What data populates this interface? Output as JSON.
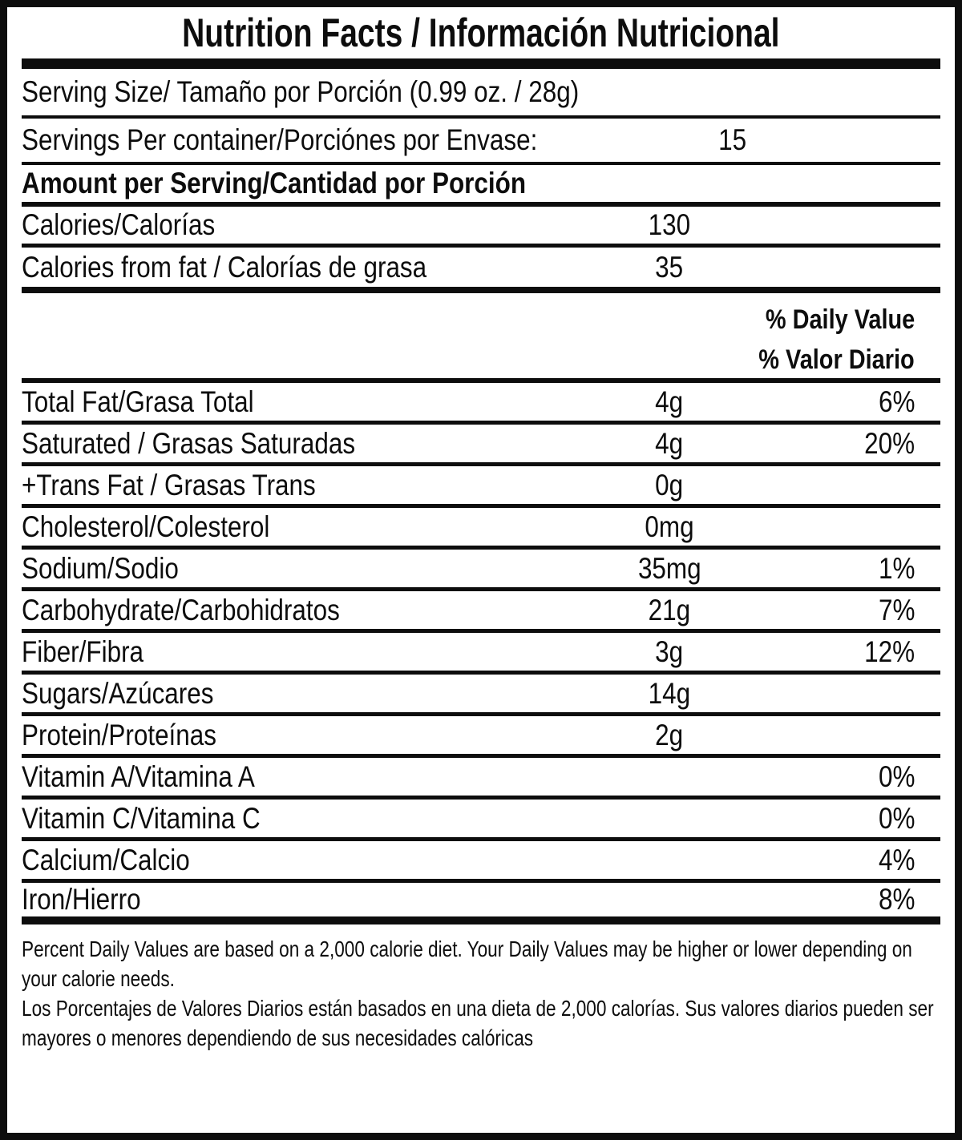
{
  "title": "Nutrition Facts / Información Nutricional",
  "serving": {
    "serving_size_label": "Serving Size/ Tamaño por Porción  (0.99 oz. / 28g)",
    "servings_per_container_label": "Servings Per container/Porciónes por Envase:",
    "servings_per_container_value": "15",
    "amount_per_serving_label": "Amount per Serving/Cantidad por Porción"
  },
  "calories": {
    "calories_label": "Calories/Calorías",
    "calories_value": "130",
    "calories_from_fat_label": "Calories from fat / Calorías de grasa",
    "calories_from_fat_value": "35"
  },
  "daily_value_header": {
    "line1": "% Daily Value",
    "line2": "% Valor Diario"
  },
  "nutrients": [
    {
      "label": "Total Fat/Grasa Total",
      "amount": "4g",
      "dv": "6%"
    },
    {
      "label": "Saturated / Grasas Saturadas",
      "amount": "4g",
      "dv": "20%"
    },
    {
      "label": "+Trans Fat / Grasas Trans",
      "amount": "0g",
      "dv": ""
    },
    {
      "label": "Cholesterol/Colesterol",
      "amount": "0mg",
      "dv": ""
    },
    {
      "label": "Sodium/Sodio",
      "amount": "35mg",
      "dv": "1%"
    },
    {
      "label": "Carbohydrate/Carbohidratos",
      "amount": "21g",
      "dv": "7%"
    },
    {
      "label": "Fiber/Fibra",
      "amount": "3g",
      "dv": "12%"
    },
    {
      "label": "Sugars/Azúcares",
      "amount": "14g",
      "dv": ""
    },
    {
      "label": "Protein/Proteínas",
      "amount": "2g",
      "dv": ""
    },
    {
      "label": "Vitamin A/Vitamina A",
      "amount": "",
      "dv": "0%"
    },
    {
      "label": "Vitamin C/Vitamina C",
      "amount": "",
      "dv": "0%"
    },
    {
      "label": "Calcium/Calcio",
      "amount": "",
      "dv": "4%"
    },
    {
      "label": "Iron/Hierro",
      "amount": "",
      "dv": "8%"
    }
  ],
  "footnote": {
    "english": "Percent Daily Values are based on a 2,000 calorie diet. Your Daily Values may be higher or lower depending on your calorie needs.",
    "spanish": "Los Porcentajes de Valores Diarios están basados en una dieta de 2,000 calorías. Sus valores diarios pueden ser mayores o menores dependiendo de sus necesidades calóricas"
  },
  "colors": {
    "ink": "#0d0d0d",
    "background": "#ffffff"
  }
}
